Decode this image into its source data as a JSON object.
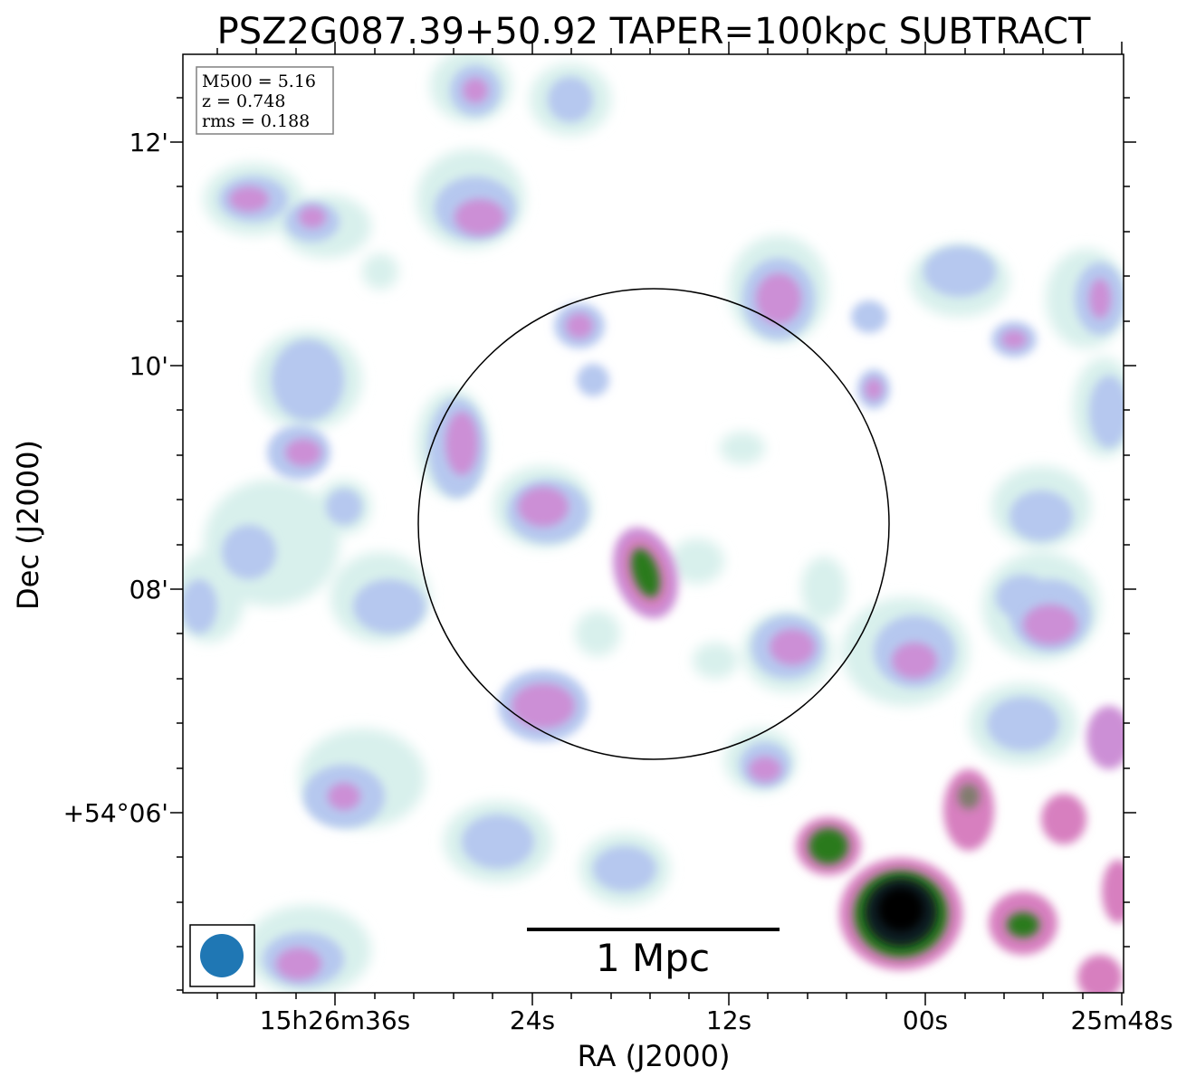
{
  "chart_data": {
    "type": "heatmap",
    "title": "PSZ2G087.39+50.92 TAPER=100kpc SUBTRACT",
    "xlabel": "RA (J2000)",
    "ylabel": "Dec (J2000)",
    "x_tick_labels": [
      "15h26m36s",
      "24s",
      "12s",
      "00s",
      "25m48s"
    ],
    "y_tick_labels": [
      "12'",
      "10'",
      "08'",
      "+54°06'"
    ],
    "annotation": {
      "m500": "M500 = 5.16",
      "z": "z = 0.748",
      "rms": "rms = 0.188"
    },
    "scale_bar_label": "1 Mpc",
    "colormap": [
      "#ffffff",
      "#d8f0ec",
      "#b6c8ef",
      "#cc8fd6",
      "#d77fbf",
      "#2a7a1e",
      "#0c1a24",
      "#000000"
    ],
    "circle_color": "#000000",
    "beam_color": "#1f77b4"
  }
}
